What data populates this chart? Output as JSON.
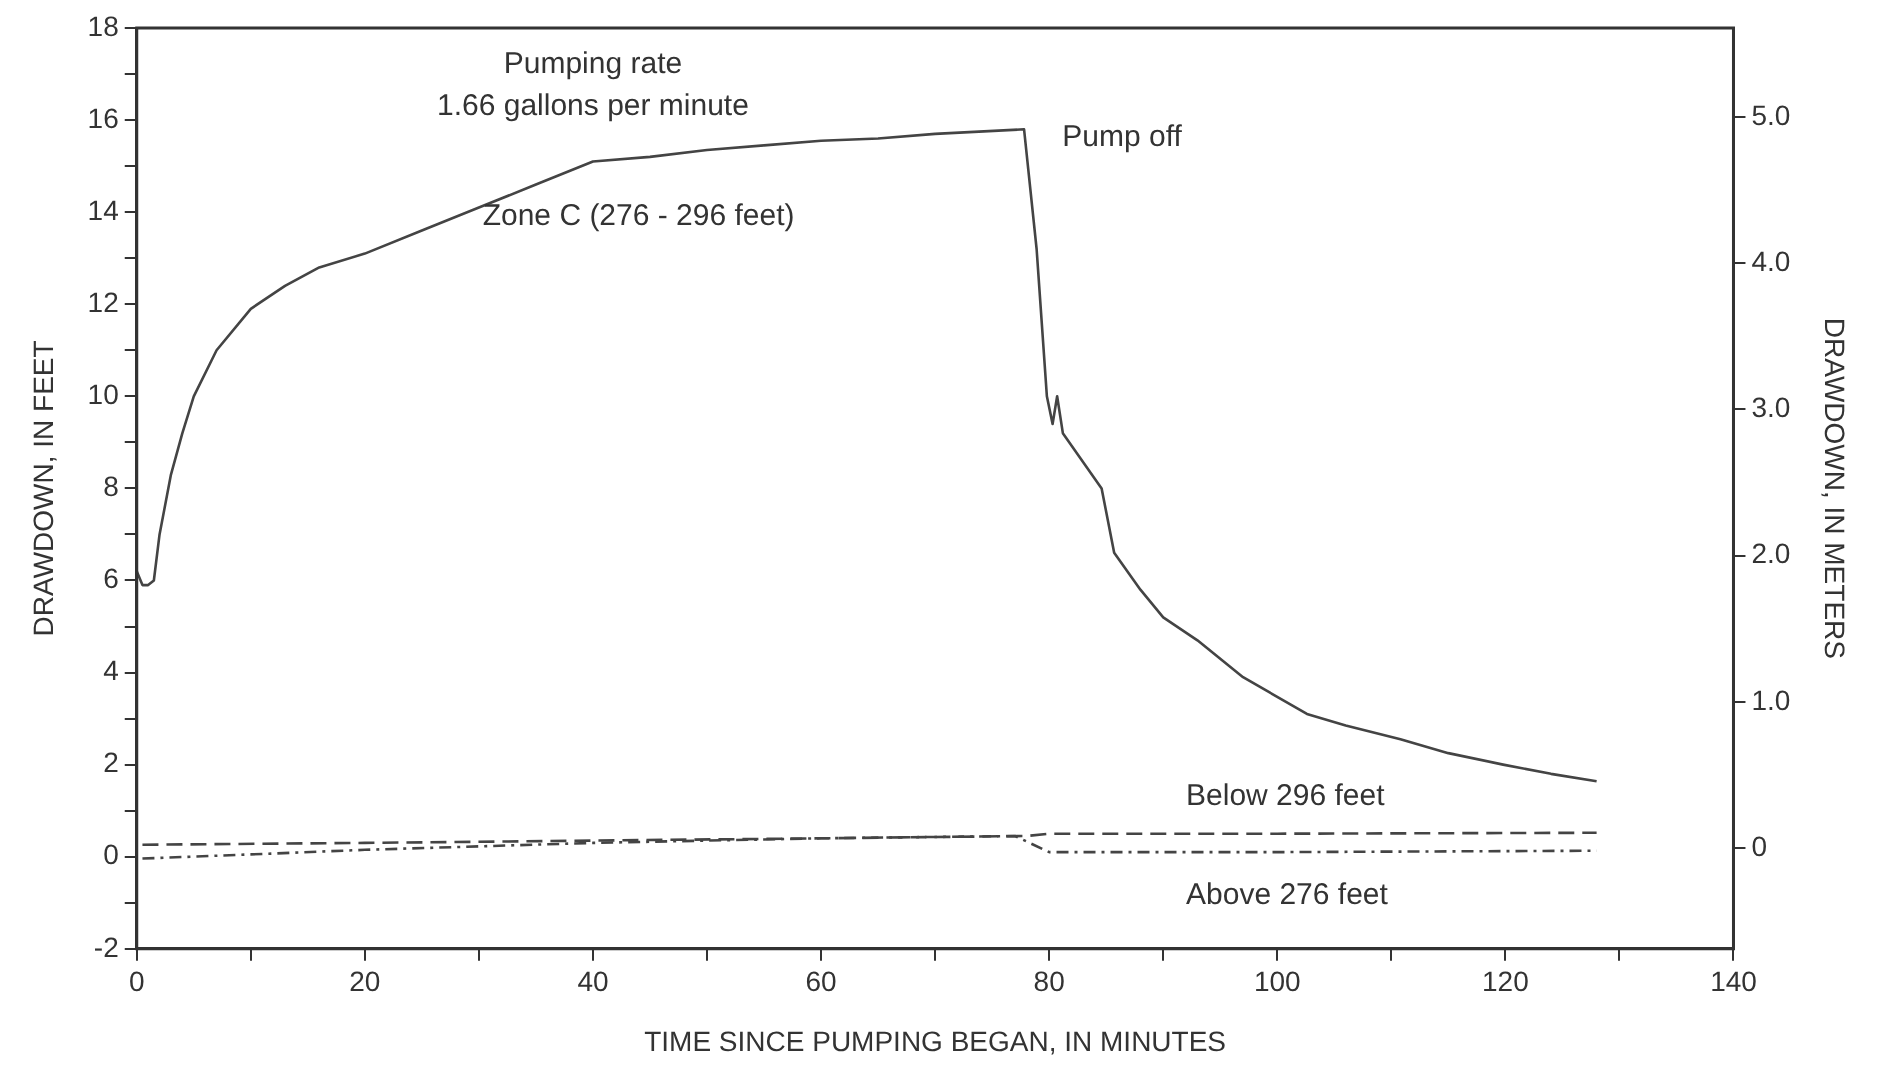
{
  "chart_data": {
    "type": "line",
    "xlabel": "TIME SINCE PUMPING BEGAN, IN MINUTES",
    "ylabel": "DRAWDOWN, IN FEET",
    "y2label": "DRAWDOWN, IN METERS",
    "xlim": [
      0,
      140
    ],
    "xticks": [
      0,
      {
        "value": 10,
        "label": null
      },
      20,
      {
        "value": 30,
        "label": null
      },
      40,
      {
        "value": 50,
        "label": null
      },
      60,
      {
        "value": 70,
        "label": null
      },
      80,
      {
        "value": 90,
        "label": null
      },
      100,
      {
        "value": 110,
        "label": null
      },
      120,
      {
        "value": 130,
        "label": null
      },
      140
    ],
    "ylim": [
      -2,
      18
    ],
    "yticks": [
      -2,
      {
        "value": -1,
        "label": null
      },
      0,
      {
        "value": 1,
        "label": null
      },
      2,
      {
        "value": 3,
        "label": null
      },
      4,
      {
        "value": 5,
        "label": null
      },
      6,
      {
        "value": 7,
        "label": null
      },
      8,
      {
        "value": 9,
        "label": null
      },
      10,
      {
        "value": 11,
        "label": null
      },
      12,
      {
        "value": 13,
        "label": null
      },
      14,
      {
        "value": 15,
        "label": null
      },
      16,
      {
        "value": 17,
        "label": null
      },
      18
    ],
    "y2lim": [
      -0.69,
      5.61
    ],
    "y2ticks": [
      0,
      {
        "value": 1,
        "label": "1.0"
      },
      {
        "value": 2,
        "label": "2.0"
      },
      {
        "value": 3,
        "label": "3.0"
      },
      {
        "value": 4,
        "label": "4.0"
      },
      {
        "value": 5,
        "label": "5.0"
      }
    ],
    "annotations": [
      "Pumping rate",
      "1.66 gallons per minute",
      {
        "text": "Pump off",
        "x": 78,
        "y": 15.8
      }
    ],
    "series": [
      {
        "name": "Zone C (276 - 296 feet)",
        "color": "#444444",
        "line_style": "solid",
        "x": [
          0,
          0.5,
          1,
          1.5,
          2,
          3,
          4,
          5,
          7,
          10,
          13,
          16,
          20,
          25,
          30,
          35,
          40,
          45,
          50,
          55,
          60,
          65,
          70,
          77.8,
          78.9,
          79.8,
          80.3,
          80.7,
          81.2,
          84.6,
          85.7,
          88,
          90,
          93,
          97,
          102.6,
          106,
          110.8,
          115,
          119.8,
          124,
          128
        ],
        "values": [
          6.2,
          5.9,
          5.9,
          6.0,
          7.0,
          8.3,
          9.2,
          10.0,
          11.0,
          11.9,
          12.4,
          12.8,
          13.1,
          13.6,
          14.1,
          14.6,
          15.1,
          15.2,
          15.35,
          15.45,
          15.55,
          15.6,
          15.7,
          15.8,
          13.2,
          10.0,
          9.4,
          10.0,
          9.2,
          8.0,
          6.6,
          5.8,
          5.2,
          4.7,
          3.9,
          3.1,
          2.85,
          2.55,
          2.25,
          2.0,
          1.8,
          1.64
        ]
      },
      {
        "name": "Below 296 feet",
        "color": "#444444",
        "line_style": "dashed",
        "x": [
          0.5,
          20,
          40,
          60,
          78,
          80,
          100,
          128
        ],
        "values": [
          0.26,
          0.3,
          0.35,
          0.4,
          0.45,
          0.5,
          0.5,
          0.52
        ]
      },
      {
        "name": "Above 276 feet",
        "color": "#444444",
        "line_style": "dotted",
        "x": [
          0.5,
          10,
          20,
          40,
          60,
          77,
          80,
          100,
          128
        ],
        "values": [
          -0.04,
          0.05,
          0.15,
          0.3,
          0.4,
          0.45,
          0.1,
          0.1,
          0.13
        ]
      }
    ]
  }
}
